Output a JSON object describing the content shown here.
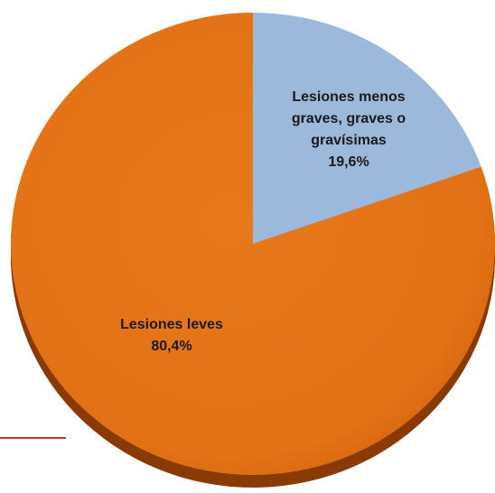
{
  "chart_data": {
    "type": "pie",
    "title": "",
    "slices": [
      {
        "label": "Lesiones menos graves, graves o gravísimas",
        "label_lines": [
          "Lesiones menos",
          "graves, graves o",
          "gravísimas"
        ],
        "value_text": "19,6%",
        "value": 19.6,
        "color": "#9cb9dc",
        "shadow_color": "#6f89aa"
      },
      {
        "label": "Lesiones leves",
        "label_lines": [
          "Lesiones leves"
        ],
        "value_text": "80,4%",
        "value": 80.4,
        "color": "#e37216",
        "shadow_color": "#8a3a05"
      }
    ],
    "legend": "none",
    "start": "12 o'clock, clockwise"
  },
  "decorations": {
    "divider_color": "#c0392b"
  }
}
